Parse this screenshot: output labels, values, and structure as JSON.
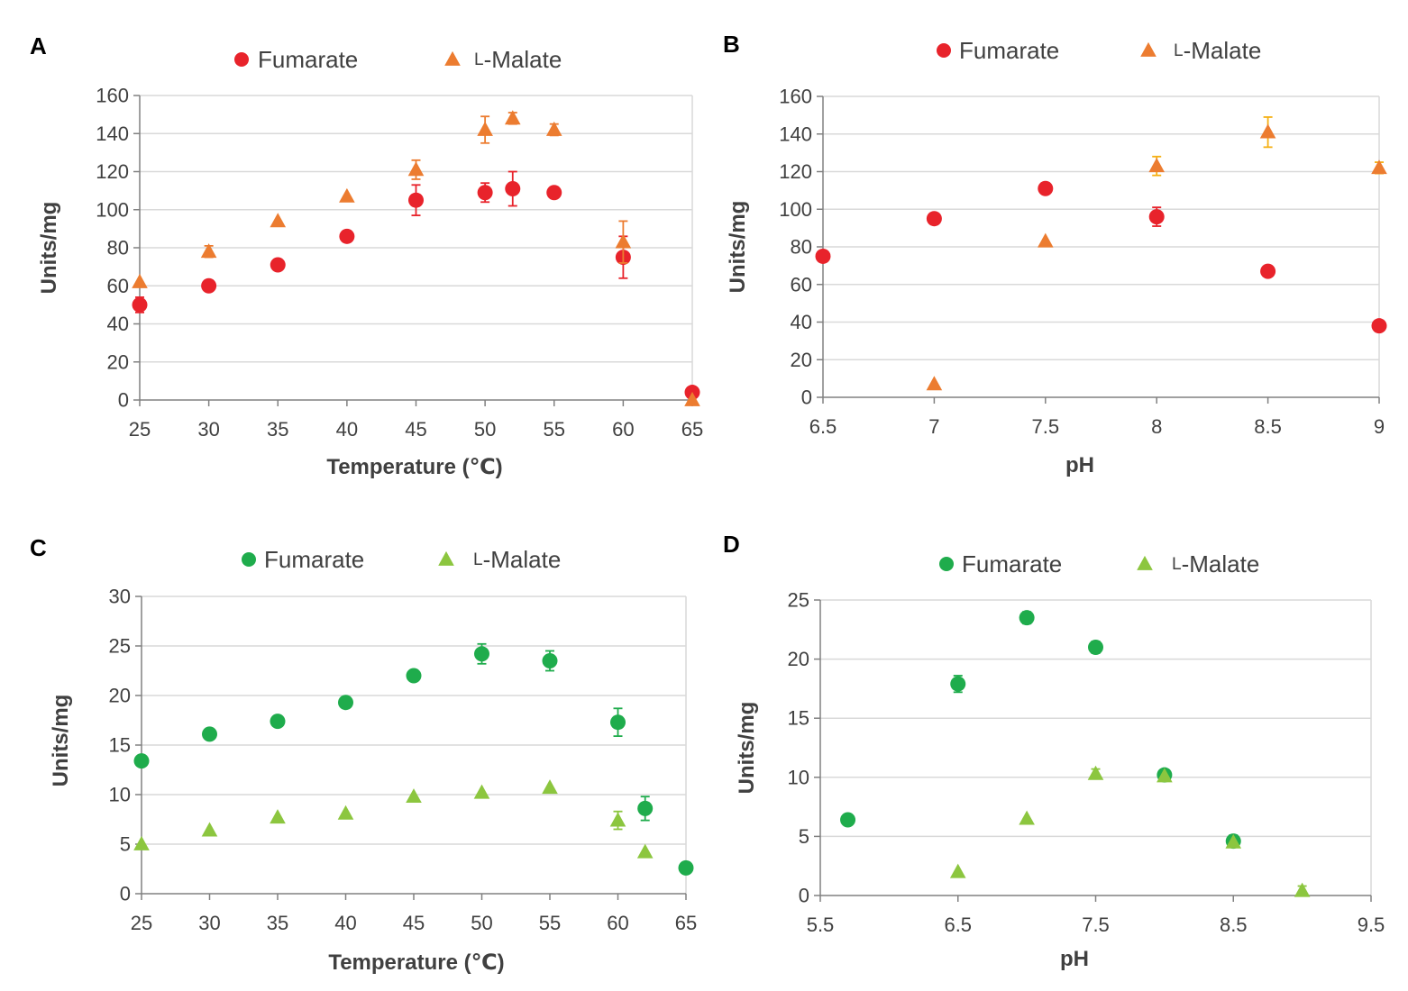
{
  "colors": {
    "red": "#e8232b",
    "orange": "#ec7c30",
    "green": "#1fac4c",
    "lightgreen": "#8cc63f",
    "gold": "#f5b014",
    "grid": "#d9d9d9",
    "axis": "#808080",
    "text": "#404040"
  },
  "chart_data": [
    {
      "panel": "A",
      "type": "scatter",
      "title": "",
      "xlabel": "Temperature (℃)",
      "ylabel": "Units/mg",
      "xlim": [
        25,
        65
      ],
      "ylim": [
        0,
        160
      ],
      "xticks": [
        25,
        30,
        35,
        40,
        45,
        50,
        55,
        60,
        65
      ],
      "yticks": [
        0,
        20,
        40,
        60,
        80,
        100,
        120,
        140,
        160
      ],
      "xtick_labels": [
        "25",
        "30",
        "35",
        "40",
        "45",
        "50",
        "55",
        "60",
        "65"
      ],
      "ytick_labels": [
        "0",
        "20",
        "40",
        "60",
        "80",
        "100",
        "120",
        "140",
        "160"
      ],
      "grid": true,
      "legend": "top-center",
      "series": [
        {
          "name": "Fumarate",
          "marker": "circle",
          "color": "red",
          "points": [
            {
              "x": 25,
              "y": 50,
              "err": 4
            },
            {
              "x": 30,
              "y": 60,
              "err": 0
            },
            {
              "x": 35,
              "y": 71,
              "err": 0
            },
            {
              "x": 40,
              "y": 86,
              "err": 0
            },
            {
              "x": 45,
              "y": 105,
              "err": 8
            },
            {
              "x": 50,
              "y": 109,
              "err": 5
            },
            {
              "x": 52,
              "y": 111,
              "err": 9
            },
            {
              "x": 55,
              "y": 109,
              "err": 0
            },
            {
              "x": 60,
              "y": 75,
              "err": 11
            },
            {
              "x": 65,
              "y": 4,
              "err": 0
            }
          ]
        },
        {
          "name": "L-Malate",
          "legend_label": [
            "L",
            "-Malate"
          ],
          "marker": "triangle",
          "color": "orange",
          "points": [
            {
              "x": 25,
              "y": 62,
              "err": 0
            },
            {
              "x": 30,
              "y": 78,
              "err": 3
            },
            {
              "x": 35,
              "y": 94,
              "err": 0
            },
            {
              "x": 40,
              "y": 107,
              "err": 0
            },
            {
              "x": 45,
              "y": 121,
              "err": 5
            },
            {
              "x": 50,
              "y": 142,
              "err": 7
            },
            {
              "x": 52,
              "y": 148,
              "err": 3
            },
            {
              "x": 55,
              "y": 142,
              "err": 3
            },
            {
              "x": 60,
              "y": 83,
              "err": 11
            },
            {
              "x": 65,
              "y": 0,
              "err": 0
            }
          ]
        }
      ]
    },
    {
      "panel": "B",
      "type": "scatter",
      "title": "",
      "xlabel": "pH",
      "ylabel": "Units/mg",
      "xlim": [
        6.5,
        9
      ],
      "ylim": [
        0,
        160
      ],
      "xticks": [
        6.5,
        7,
        7.5,
        8,
        8.5,
        9
      ],
      "yticks": [
        0,
        20,
        40,
        60,
        80,
        100,
        120,
        140,
        160
      ],
      "xtick_labels": [
        "6.5",
        "7",
        "7.5",
        "8",
        "8.5",
        "9"
      ],
      "ytick_labels": [
        "0",
        "20",
        "40",
        "60",
        "80",
        "100",
        "120",
        "140",
        "160"
      ],
      "grid": true,
      "legend": "top-center",
      "series": [
        {
          "name": "Fumarate",
          "marker": "circle",
          "color": "red",
          "points": [
            {
              "x": 6.5,
              "y": 75,
              "err": 0
            },
            {
              "x": 7,
              "y": 95,
              "err": 0
            },
            {
              "x": 7.5,
              "y": 111,
              "err": 0
            },
            {
              "x": 8,
              "y": 96,
              "err": 5
            },
            {
              "x": 8.5,
              "y": 67,
              "err": 0
            },
            {
              "x": 9,
              "y": 38,
              "err": 0
            }
          ]
        },
        {
          "name": "L-Malate",
          "legend_label": [
            "L",
            "-Malate"
          ],
          "marker": "triangle",
          "color": "orange",
          "points": [
            {
              "x": 7,
              "y": 7,
              "err": 0
            },
            {
              "x": 7.5,
              "y": 83,
              "err": 0
            },
            {
              "x": 8,
              "y": 123,
              "err": 5,
              "err_color": "gold"
            },
            {
              "x": 8.5,
              "y": 141,
              "err": 8,
              "err_color": "gold"
            },
            {
              "x": 9,
              "y": 122,
              "err": 3,
              "err_color": "gold"
            }
          ]
        }
      ]
    },
    {
      "panel": "C",
      "type": "scatter",
      "title": "",
      "xlabel": "Temperature (℃)",
      "ylabel": "Units/mg",
      "xlim": [
        25,
        65
      ],
      "ylim": [
        0,
        30
      ],
      "xticks": [
        25,
        30,
        35,
        40,
        45,
        50,
        55,
        60,
        65
      ],
      "yticks": [
        0,
        5,
        10,
        15,
        20,
        25,
        30
      ],
      "xtick_labels": [
        "25",
        "30",
        "35",
        "40",
        "45",
        "50",
        "55",
        "60",
        "65"
      ],
      "ytick_labels": [
        "0",
        "5",
        "10",
        "15",
        "20",
        "25",
        "30"
      ],
      "grid": true,
      "legend": "top-center",
      "series": [
        {
          "name": "Fumarate",
          "marker": "circle",
          "color": "green",
          "points": [
            {
              "x": 25,
              "y": 13.4,
              "err": 0
            },
            {
              "x": 30,
              "y": 16.1,
              "err": 0
            },
            {
              "x": 35,
              "y": 17.4,
              "err": 0
            },
            {
              "x": 40,
              "y": 19.3,
              "err": 0
            },
            {
              "x": 45,
              "y": 22,
              "err": 0
            },
            {
              "x": 50,
              "y": 24.2,
              "err": 1
            },
            {
              "x": 55,
              "y": 23.5,
              "err": 1
            },
            {
              "x": 60,
              "y": 17.3,
              "err": 1.4
            },
            {
              "x": 62,
              "y": 8.6,
              "err": 1.2
            },
            {
              "x": 65,
              "y": 2.6,
              "err": 0
            }
          ]
        },
        {
          "name": "L-Malate",
          "legend_label": [
            "L",
            "-Malate"
          ],
          "marker": "triangle",
          "color": "lightgreen",
          "points": [
            {
              "x": 25,
              "y": 5,
              "err": 0
            },
            {
              "x": 30,
              "y": 6.4,
              "err": 0
            },
            {
              "x": 35,
              "y": 7.7,
              "err": 0
            },
            {
              "x": 40,
              "y": 8.1,
              "err": 0
            },
            {
              "x": 45,
              "y": 9.8,
              "err": 0
            },
            {
              "x": 50,
              "y": 10.2,
              "err": 0
            },
            {
              "x": 55,
              "y": 10.7,
              "err": 0
            },
            {
              "x": 60,
              "y": 7.4,
              "err": 0.9
            },
            {
              "x": 62,
              "y": 4.2,
              "err": 0
            },
            {
              "x": 65,
              "y": 2.6,
              "err": 0,
              "hidden_behind_circle": true
            }
          ]
        }
      ]
    },
    {
      "panel": "D",
      "type": "scatter",
      "title": "",
      "xlabel": "pH",
      "ylabel": "Units/mg",
      "xlim": [
        5.5,
        9.5
      ],
      "ylim": [
        0,
        25
      ],
      "xticks": [
        5.5,
        6.5,
        7.5,
        8.5,
        9.5
      ],
      "yticks": [
        0,
        5,
        10,
        15,
        20,
        25
      ],
      "xtick_labels": [
        "5.5",
        "6.5",
        "7.5",
        "8.5",
        "9.5"
      ],
      "ytick_labels": [
        "0",
        "5",
        "10",
        "15",
        "20",
        "25"
      ],
      "grid": true,
      "legend": "top-center",
      "series": [
        {
          "name": "Fumarate",
          "marker": "circle",
          "color": "green",
          "points": [
            {
              "x": 5.7,
              "y": 6.4,
              "err": 0
            },
            {
              "x": 6.5,
              "y": 17.9,
              "err": 0.7
            },
            {
              "x": 7,
              "y": 23.5,
              "err": 0.5
            },
            {
              "x": 7.5,
              "y": 21,
              "err": 0.5
            },
            {
              "x": 8,
              "y": 10.2,
              "err": 0
            },
            {
              "x": 8.5,
              "y": 4.6,
              "err": 0.5
            }
          ]
        },
        {
          "name": "L-Malate",
          "legend_label": [
            "L",
            "-Malate"
          ],
          "marker": "triangle",
          "color": "lightgreen",
          "points": [
            {
              "x": 6.5,
              "y": 2,
              "err": 0
            },
            {
              "x": 7,
              "y": 6.5,
              "err": 0
            },
            {
              "x": 7.5,
              "y": 10.3,
              "err": 0.4
            },
            {
              "x": 8,
              "y": 10.1,
              "err": 0
            },
            {
              "x": 8.5,
              "y": 4.5,
              "err": 0
            },
            {
              "x": 9,
              "y": 0.4,
              "err": 0.4
            }
          ]
        }
      ]
    }
  ]
}
